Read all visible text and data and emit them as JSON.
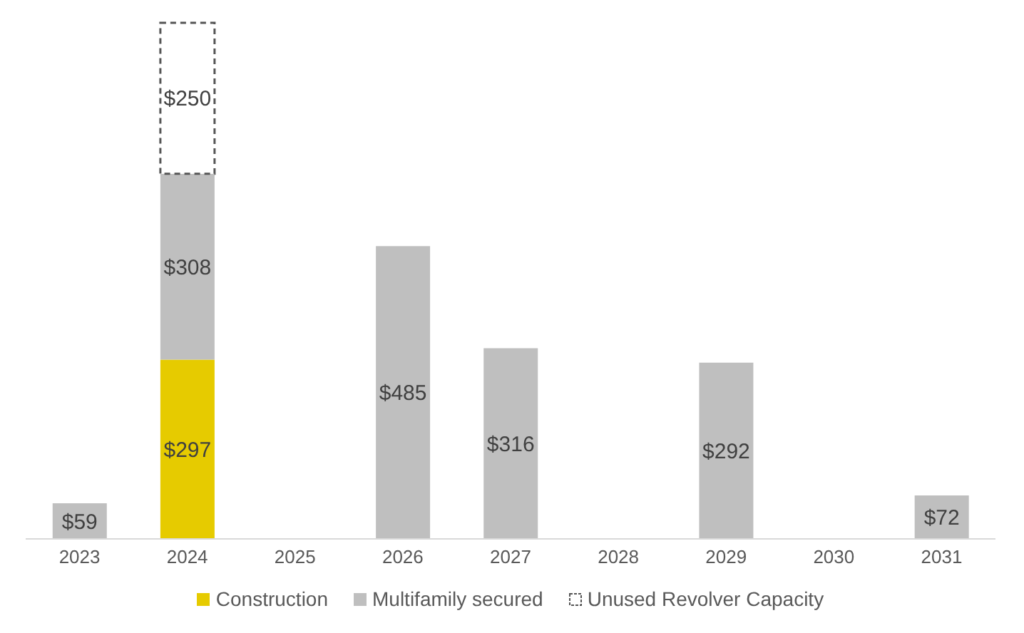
{
  "chart_data": {
    "type": "bar",
    "stacked": true,
    "categories": [
      "2023",
      "2024",
      "2025",
      "2026",
      "2027",
      "2028",
      "2029",
      "2030",
      "2031"
    ],
    "series": [
      {
        "name": "Construction",
        "color": "#e6cb00",
        "values": [
          null,
          297,
          null,
          null,
          null,
          null,
          null,
          null,
          null
        ],
        "value_labels": [
          null,
          "$297",
          null,
          null,
          null,
          null,
          null,
          null,
          null
        ]
      },
      {
        "name": "Multifamily secured",
        "color": "#bfbfbf",
        "values": [
          59,
          308,
          null,
          485,
          316,
          null,
          292,
          null,
          72
        ],
        "value_labels": [
          "$59",
          "$308",
          null,
          "$485",
          "$316",
          null,
          "$292",
          null,
          "$72"
        ]
      },
      {
        "name": "Unused Revolver Capacity",
        "color": "#ffffff",
        "line_style": "dashed",
        "values": [
          null,
          250,
          null,
          null,
          null,
          null,
          null,
          null,
          null
        ],
        "value_labels": [
          null,
          "$250",
          null,
          null,
          null,
          null,
          null,
          null,
          null
        ]
      }
    ],
    "legend": "bottom"
  }
}
